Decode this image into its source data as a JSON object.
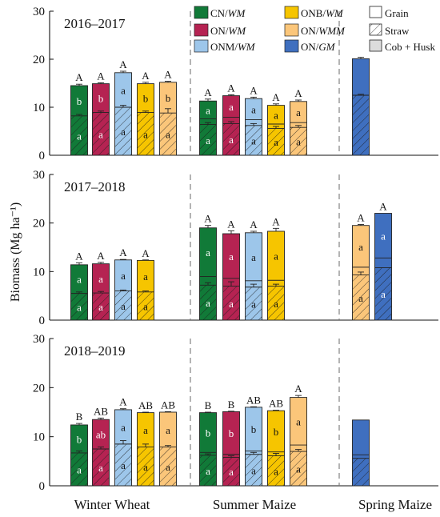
{
  "chart_data": {
    "type": "bar",
    "stacked": true,
    "ylabel": "Biomass (Mg ha⁻¹)",
    "ylim": [
      0,
      30
    ],
    "yticks": [
      0,
      10,
      20,
      30
    ],
    "grid": false,
    "legend_position": "top-right",
    "sections": [
      "Winter Wheat",
      "Summer Maize",
      "Spring Maize"
    ],
    "treatments": [
      {
        "key": "CN",
        "pre": "CN/",
        "em": "WM",
        "color": "#117a38"
      },
      {
        "key": "ON",
        "pre": "ON/",
        "em": "WM",
        "color": "#b52352"
      },
      {
        "key": "ONM",
        "pre": "ONM/",
        "em": "WM",
        "color": "#9dc6ea"
      },
      {
        "key": "ONB",
        "pre": "ONB/",
        "em": "WM",
        "color": "#f6c500"
      },
      {
        "key": "ONWMM",
        "pre": "ON/",
        "em": "WMM",
        "color": "#fbc67a"
      },
      {
        "key": "GM",
        "pre": "ON/",
        "em": "GM",
        "color": "#3f6fbf"
      }
    ],
    "components": [
      {
        "key": "grain",
        "label": "Grain"
      },
      {
        "key": "straw",
        "label": "Straw"
      },
      {
        "key": "cob",
        "label": "Cob + Husk"
      }
    ],
    "panels": [
      {
        "title": "2016–2017",
        "bars": [
          {
            "section": "Winter Wheat",
            "treatment": "CN",
            "straw": 8.2,
            "cob": 0,
            "total": 14.5,
            "err": 0.3,
            "straw_err": 0.3,
            "total_letter": "A",
            "top_letter": "b",
            "bottom_letter": "a"
          },
          {
            "section": "Winter Wheat",
            "treatment": "ON",
            "straw": 8.9,
            "cob": 0,
            "total": 14.9,
            "err": 0.2,
            "straw_err": 0.3,
            "total_letter": "A",
            "top_letter": "b",
            "bottom_letter": "a"
          },
          {
            "section": "Winter Wheat",
            "treatment": "ONM",
            "straw": 10.0,
            "cob": 0,
            "total": 17.2,
            "err": 0.3,
            "straw_err": 0.4,
            "total_letter": "A",
            "top_letter": "a",
            "bottom_letter": "a"
          },
          {
            "section": "Winter Wheat",
            "treatment": "ONB",
            "straw": 8.9,
            "cob": 0,
            "total": 14.9,
            "err": 0.3,
            "straw_err": 0.3,
            "total_letter": "A",
            "top_letter": "b",
            "bottom_letter": "a"
          },
          {
            "section": "Winter Wheat",
            "treatment": "ONWMM",
            "straw": 8.8,
            "cob": 0,
            "total": 15.2,
            "err": 0.2,
            "straw_err": 0.9,
            "total_letter": "A",
            "top_letter": "b",
            "bottom_letter": "a"
          },
          {
            "section": "Summer Maize",
            "treatment": "CN",
            "straw": 6.4,
            "cob": 1.2,
            "total": 11.3,
            "err": 0.4,
            "straw_err": 0.4,
            "total_letter": "A",
            "top_letter": "a",
            "bottom_letter": "a"
          },
          {
            "section": "Summer Maize",
            "treatment": "ON",
            "straw": 6.6,
            "cob": 1.3,
            "total": 12.4,
            "err": 0.2,
            "straw_err": 0.4,
            "total_letter": "A",
            "top_letter": "a",
            "bottom_letter": "a"
          },
          {
            "section": "Summer Maize",
            "treatment": "ONM",
            "straw": 6.2,
            "cob": 1.2,
            "total": 11.8,
            "err": 0.3,
            "straw_err": 0.4,
            "total_letter": "A",
            "top_letter": "a",
            "bottom_letter": "a"
          },
          {
            "section": "Summer Maize",
            "treatment": "ONB",
            "straw": 5.6,
            "cob": 0.9,
            "total": 10.4,
            "err": 0.3,
            "straw_err": 0.4,
            "total_letter": "A",
            "top_letter": "a",
            "bottom_letter": "a"
          },
          {
            "section": "Summer Maize",
            "treatment": "ONWMM",
            "straw": 5.8,
            "cob": 1.0,
            "total": 11.2,
            "err": 0.3,
            "straw_err": 0.4,
            "total_letter": "A",
            "top_letter": "a",
            "bottom_letter": "a"
          },
          {
            "section": "Spring Maize",
            "treatment": "GM",
            "straw": 12.5,
            "cob": 0,
            "total": 20.1,
            "err": 0.3,
            "straw_err": 0.2,
            "total_letter": "",
            "top_letter": "",
            "bottom_letter": ""
          }
        ]
      },
      {
        "title": "2017–2018",
        "bars": [
          {
            "section": "Winter Wheat",
            "treatment": "CN",
            "straw": 5.5,
            "cob": 0,
            "total": 11.4,
            "err": 0.4,
            "straw_err": 0.3,
            "total_letter": "A",
            "top_letter": "a",
            "bottom_letter": "a"
          },
          {
            "section": "Winter Wheat",
            "treatment": "ON",
            "straw": 5.6,
            "cob": 0,
            "total": 11.6,
            "err": 0.3,
            "straw_err": 0.3,
            "total_letter": "A",
            "top_letter": "a",
            "bottom_letter": "a"
          },
          {
            "section": "Winter Wheat",
            "treatment": "ONM",
            "straw": 6.0,
            "cob": 0,
            "total": 12.4,
            "err": 0.1,
            "straw_err": 0.2,
            "total_letter": "A",
            "top_letter": "a",
            "bottom_letter": "a"
          },
          {
            "section": "Winter Wheat",
            "treatment": "ONB",
            "straw": 5.8,
            "cob": 0,
            "total": 12.3,
            "err": 0.1,
            "straw_err": 0.2,
            "total_letter": "A",
            "top_letter": "a",
            "bottom_letter": "a"
          },
          {
            "section": "Summer Maize",
            "treatment": "CN",
            "straw": 7.2,
            "cob": 1.8,
            "total": 19.0,
            "err": 0.5,
            "straw_err": 0.5,
            "total_letter": "A",
            "top_letter": "a",
            "bottom_letter": "a"
          },
          {
            "section": "Summer Maize",
            "treatment": "ON",
            "straw": 7.0,
            "cob": 1.6,
            "total": 17.8,
            "err": 0.6,
            "straw_err": 0.9,
            "total_letter": "A",
            "top_letter": "a",
            "bottom_letter": "a"
          },
          {
            "section": "Summer Maize",
            "treatment": "ONM",
            "straw": 6.8,
            "cob": 1.3,
            "total": 18.0,
            "err": 0.3,
            "straw_err": 0.6,
            "total_letter": "A",
            "top_letter": "a",
            "bottom_letter": "a"
          },
          {
            "section": "Summer Maize",
            "treatment": "ONB",
            "straw": 7.0,
            "cob": 1.2,
            "total": 18.3,
            "err": 0.6,
            "straw_err": 0.4,
            "total_letter": "A",
            "top_letter": "a",
            "bottom_letter": "a"
          },
          {
            "section": "Spring Maize",
            "treatment": "ONWMM",
            "straw": 9.3,
            "cob": 1.6,
            "total": 19.5,
            "err": 0.2,
            "straw_err": 0.6,
            "total_letter": "A",
            "top_letter": "a",
            "bottom_letter": "a"
          },
          {
            "section": "Spring Maize",
            "treatment": "GM",
            "straw": 10.8,
            "cob": 2.0,
            "total": 22.0,
            "err": 0.0,
            "straw_err": 0.0,
            "total_letter": "A",
            "top_letter": "a",
            "bottom_letter": "a"
          }
        ]
      },
      {
        "title": "2018–2019",
        "bars": [
          {
            "section": "Winter Wheat",
            "treatment": "CN",
            "straw": 6.7,
            "cob": 0,
            "total": 12.4,
            "err": 0.3,
            "straw_err": 0.4,
            "total_letter": "B",
            "top_letter": "b",
            "bottom_letter": "a"
          },
          {
            "section": "Winter Wheat",
            "treatment": "ON",
            "straw": 7.5,
            "cob": 0,
            "total": 13.5,
            "err": 0.3,
            "straw_err": 0.4,
            "total_letter": "AB",
            "top_letter": "ab",
            "bottom_letter": "a"
          },
          {
            "section": "Winter Wheat",
            "treatment": "ONM",
            "straw": 8.5,
            "cob": 0,
            "total": 15.5,
            "err": 0.2,
            "straw_err": 0.7,
            "total_letter": "A",
            "top_letter": "a",
            "bottom_letter": "a"
          },
          {
            "section": "Winter Wheat",
            "treatment": "ONB",
            "straw": 7.9,
            "cob": 0,
            "total": 14.9,
            "err": 0.1,
            "straw_err": 0.6,
            "total_letter": "AB",
            "top_letter": "a",
            "bottom_letter": "a"
          },
          {
            "section": "Winter Wheat",
            "treatment": "ONWMM",
            "straw": 7.9,
            "cob": 0,
            "total": 15.0,
            "err": 0.1,
            "straw_err": 0.3,
            "total_letter": "AB",
            "top_letter": "a",
            "bottom_letter": "a"
          },
          {
            "section": "Summer Maize",
            "treatment": "CN",
            "straw": 6.2,
            "cob": 0.6,
            "total": 14.9,
            "err": 0.1,
            "straw_err": 0.3,
            "total_letter": "B",
            "top_letter": "b",
            "bottom_letter": "a"
          },
          {
            "section": "Summer Maize",
            "treatment": "ON",
            "straw": 5.8,
            "cob": 0.6,
            "total": 15.1,
            "err": 0.1,
            "straw_err": 0.3,
            "total_letter": "B",
            "top_letter": "b",
            "bottom_letter": "a"
          },
          {
            "section": "Summer Maize",
            "treatment": "ONM",
            "straw": 6.4,
            "cob": 0.7,
            "total": 16.0,
            "err": 0.1,
            "straw_err": 0.4,
            "total_letter": "AB",
            "top_letter": "b",
            "bottom_letter": "a"
          },
          {
            "section": "Summer Maize",
            "treatment": "ONB",
            "straw": 6.1,
            "cob": 0.8,
            "total": 15.3,
            "err": 0.1,
            "straw_err": 0.5,
            "total_letter": "AB",
            "top_letter": "b",
            "bottom_letter": "a"
          },
          {
            "section": "Summer Maize",
            "treatment": "ONWMM",
            "straw": 7.0,
            "cob": 1.3,
            "total": 18.0,
            "err": 0.4,
            "straw_err": 0.4,
            "total_letter": "A",
            "top_letter": "a",
            "bottom_letter": "a"
          },
          {
            "section": "Spring Maize",
            "treatment": "GM",
            "straw": 5.6,
            "cob": 0.7,
            "total": 13.4,
            "err": 0.0,
            "straw_err": 0.0,
            "total_letter": "",
            "top_letter": "",
            "bottom_letter": ""
          }
        ]
      }
    ]
  }
}
